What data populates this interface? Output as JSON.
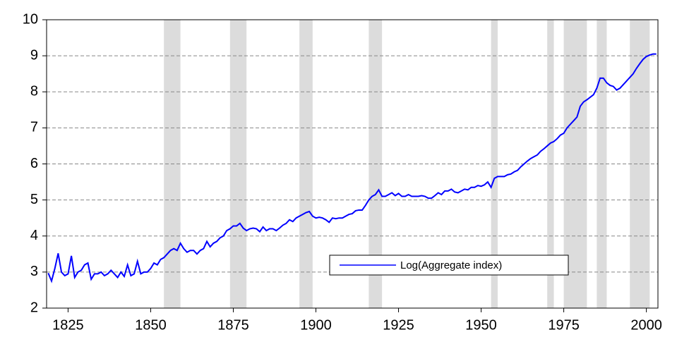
{
  "chart_data": {
    "type": "line",
    "x": [
      1819,
      1820,
      1821,
      1822,
      1823,
      1824,
      1825,
      1826,
      1827,
      1828,
      1829,
      1830,
      1831,
      1832,
      1833,
      1834,
      1835,
      1836,
      1837,
      1838,
      1839,
      1840,
      1841,
      1842,
      1843,
      1844,
      1845,
      1846,
      1847,
      1848,
      1849,
      1850,
      1851,
      1852,
      1853,
      1854,
      1855,
      1856,
      1857,
      1858,
      1859,
      1860,
      1861,
      1862,
      1863,
      1864,
      1865,
      1866,
      1867,
      1868,
      1869,
      1870,
      1871,
      1872,
      1873,
      1874,
      1875,
      1876,
      1877,
      1878,
      1879,
      1880,
      1881,
      1882,
      1883,
      1884,
      1885,
      1886,
      1887,
      1888,
      1889,
      1890,
      1891,
      1892,
      1893,
      1894,
      1895,
      1896,
      1897,
      1898,
      1899,
      1900,
      1901,
      1902,
      1903,
      1904,
      1905,
      1906,
      1907,
      1908,
      1909,
      1910,
      1911,
      1912,
      1913,
      1914,
      1915,
      1916,
      1917,
      1918,
      1919,
      1920,
      1921,
      1922,
      1923,
      1924,
      1925,
      1926,
      1927,
      1928,
      1929,
      1930,
      1931,
      1932,
      1933,
      1934,
      1935,
      1936,
      1937,
      1938,
      1939,
      1940,
      1941,
      1942,
      1943,
      1944,
      1945,
      1946,
      1947,
      1948,
      1949,
      1950,
      1951,
      1952,
      1953,
      1954,
      1955,
      1956,
      1957,
      1958,
      1959,
      1960,
      1961,
      1962,
      1963,
      1964,
      1965,
      1966,
      1967,
      1968,
      1969,
      1970,
      1971,
      1972,
      1973,
      1974,
      1975,
      1976,
      1977,
      1978,
      1979,
      1980,
      1981,
      1982,
      1983,
      1984,
      1985,
      1986,
      1987,
      1988,
      1989,
      1990,
      1991,
      1992,
      1993,
      1994,
      1995,
      1996,
      1997,
      1998,
      1999,
      2000,
      2001,
      2002,
      2003
    ],
    "series": [
      {
        "name": "Log(Aggregate index)",
        "color": "#0000ff",
        "values": [
          2.97,
          2.75,
          3.1,
          3.52,
          3.0,
          2.9,
          2.95,
          3.45,
          2.85,
          3.0,
          3.05,
          3.2,
          3.25,
          2.8,
          2.95,
          2.95,
          3.0,
          2.9,
          2.95,
          3.05,
          2.95,
          2.85,
          3.0,
          2.88,
          3.2,
          2.9,
          2.95,
          3.3,
          2.95,
          3.0,
          3.0,
          3.1,
          3.25,
          3.2,
          3.35,
          3.4,
          3.5,
          3.6,
          3.65,
          3.6,
          3.8,
          3.65,
          3.55,
          3.6,
          3.6,
          3.5,
          3.6,
          3.65,
          3.85,
          3.7,
          3.8,
          3.85,
          3.95,
          4.0,
          4.15,
          4.2,
          4.28,
          4.28,
          4.35,
          4.22,
          4.15,
          4.2,
          4.22,
          4.2,
          4.12,
          4.25,
          4.15,
          4.2,
          4.2,
          4.15,
          4.22,
          4.3,
          4.35,
          4.45,
          4.4,
          4.5,
          4.55,
          4.6,
          4.65,
          4.68,
          4.55,
          4.5,
          4.52,
          4.5,
          4.45,
          4.38,
          4.5,
          4.48,
          4.5,
          4.5,
          4.55,
          4.6,
          4.62,
          4.7,
          4.72,
          4.72,
          4.85,
          5.0,
          5.1,
          5.15,
          5.28,
          5.1,
          5.1,
          5.15,
          5.2,
          5.12,
          5.18,
          5.1,
          5.1,
          5.15,
          5.1,
          5.1,
          5.1,
          5.12,
          5.1,
          5.05,
          5.05,
          5.12,
          5.2,
          5.15,
          5.25,
          5.25,
          5.3,
          5.22,
          5.2,
          5.25,
          5.3,
          5.28,
          5.35,
          5.35,
          5.4,
          5.38,
          5.42,
          5.5,
          5.35,
          5.6,
          5.65,
          5.65,
          5.65,
          5.7,
          5.72,
          5.78,
          5.82,
          5.92,
          6.0,
          6.08,
          6.15,
          6.2,
          6.25,
          6.35,
          6.42,
          6.5,
          6.58,
          6.62,
          6.7,
          6.8,
          6.85,
          7.0,
          7.1,
          7.2,
          7.3,
          7.6,
          7.72,
          7.78,
          7.85,
          7.92,
          8.1,
          8.38,
          8.38,
          8.25,
          8.18,
          8.15,
          8.05,
          8.1,
          8.2,
          8.3,
          8.4,
          8.5,
          8.65,
          8.78,
          8.9,
          8.98,
          9.02,
          9.05,
          9.05
        ]
      }
    ],
    "shaded_periods": [
      [
        1854,
        1859
      ],
      [
        1874,
        1879
      ],
      [
        1895,
        1899
      ],
      [
        1916,
        1920
      ],
      [
        1953,
        1955
      ],
      [
        1970,
        1972
      ],
      [
        1975,
        1982
      ],
      [
        1985,
        1988
      ],
      [
        1995,
        2001
      ]
    ],
    "shade_color": "#dcdcdc",
    "xlim": [
      1818.5,
      2003.5
    ],
    "xticks": [
      1825,
      1850,
      1875,
      1900,
      1925,
      1950,
      1975,
      2000
    ],
    "ylim": [
      2,
      10
    ],
    "yticks": [
      2,
      3,
      4,
      5,
      6,
      7,
      8,
      9,
      10
    ],
    "grid": true,
    "legend": "lower-right"
  }
}
